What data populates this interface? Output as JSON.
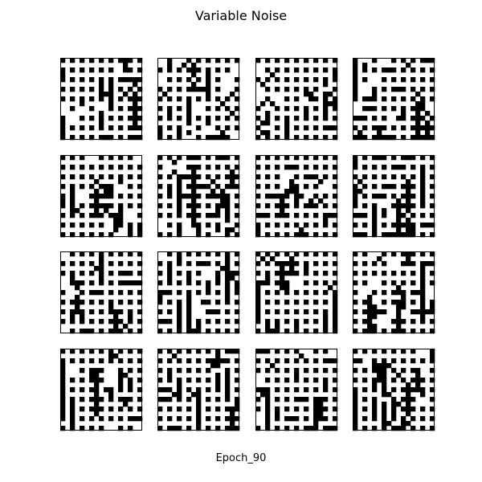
{
  "figure": {
    "title": "Variable Noise",
    "caption": "Epoch_90"
  },
  "grid": {
    "rows": 4,
    "cols": 4
  },
  "colors": {
    "on": "#000000",
    "off": "#ffffff",
    "frame": "#000000"
  }
}
